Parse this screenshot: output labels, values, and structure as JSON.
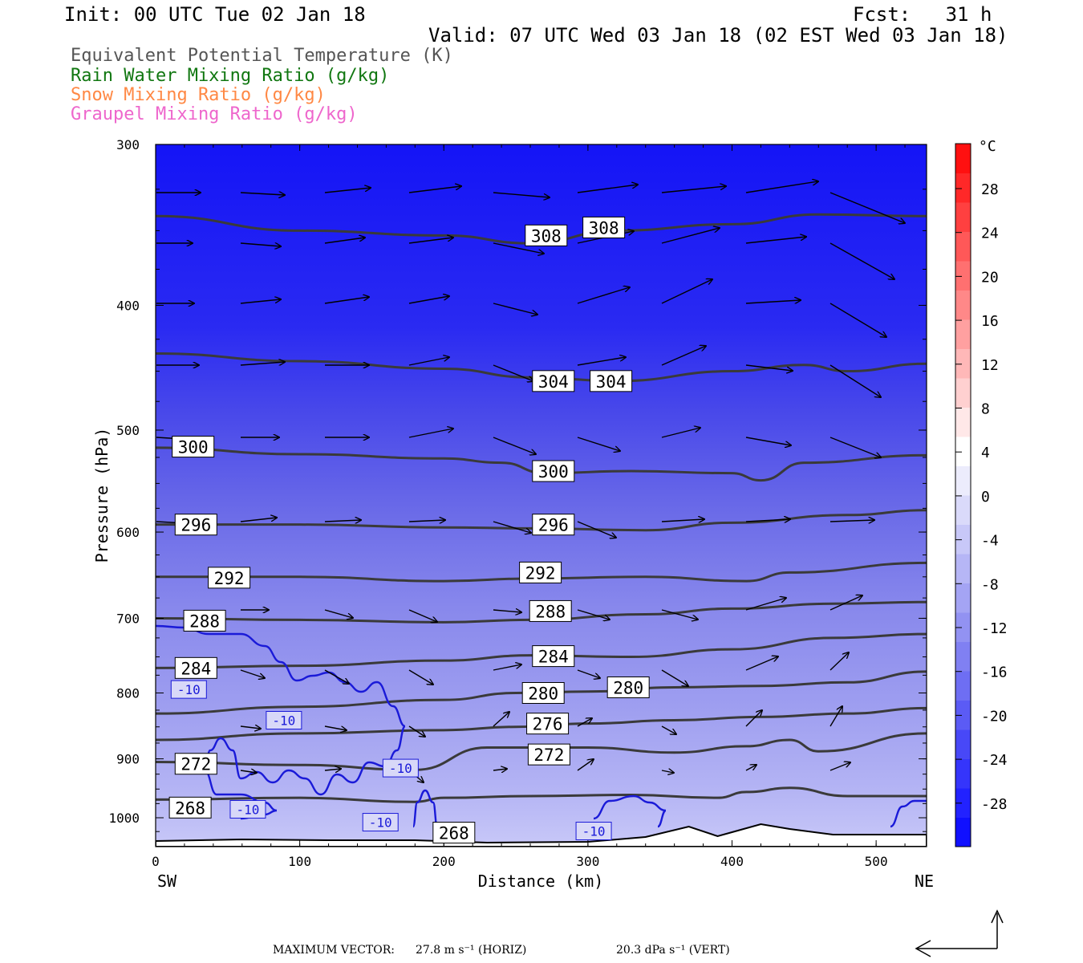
{
  "header": {
    "init": "Init: 00 UTC Tue 02 Jan 18",
    "fcst": "Fcst:   31 h",
    "valid": "Valid: 07 UTC Wed 03 Jan 18 (02 EST Wed 03 Jan 18)"
  },
  "legend": [
    {
      "label": "Equivalent Potential Temperature (K)",
      "color": "#555555"
    },
    {
      "label": "Rain Water Mixing Ratio (g/kg)",
      "color": "#117711"
    },
    {
      "label": "Snow Mixing Ratio (g/kg)",
      "color": "#ff8844"
    },
    {
      "label": "Graupel Mixing Ratio (g/kg)",
      "color": "#ee66cc"
    }
  ],
  "axes": {
    "xlabel": "Distance (km)",
    "ylabel": "Pressure (hPa)",
    "left_end": "SW",
    "right_end": "NE"
  },
  "footer": {
    "max_vector_label": "MAXIMUM VECTOR:",
    "horiz": "27.8 m s⁻¹ (HORIZ)",
    "vert": "20.3 dPa s⁻¹ (VERT)"
  },
  "colorbar": {
    "unit": "°C",
    "labels": [
      "28",
      "24",
      "20",
      "16",
      "12",
      "8",
      "4",
      "0",
      "-4",
      "-8",
      "-12",
      "-16",
      "-20",
      "-24",
      "-28"
    ],
    "colors": [
      "#1010ff",
      "#2222ff",
      "#3535fb",
      "#4848f7",
      "#5b5bf5",
      "#6e6ef3",
      "#8080f2",
      "#9292f2",
      "#a4a4f4",
      "#b6b6f6",
      "#c8c8f8",
      "#dadafa",
      "#ececfc",
      "#ffffff",
      "#ffe8e8",
      "#ffd0d0",
      "#ffb8b8",
      "#ffa0a0",
      "#ff8888",
      "#ff7070",
      "#ff5858",
      "#ff4040",
      "#ff2828",
      "#ff1010"
    ]
  },
  "chart_data": {
    "type": "cross-section",
    "x_range": [
      0,
      535
    ],
    "y_range_hpa": [
      1030,
      300
    ],
    "y_scale": "log",
    "x_ticks": [
      0,
      100,
      200,
      300,
      400,
      500
    ],
    "y_ticks": [
      300,
      400,
      500,
      600,
      700,
      800,
      900,
      1000
    ],
    "theta_e_contours": [
      {
        "value": 308,
        "label": "308",
        "points": [
          [
            0,
            341
          ],
          [
            100,
            350
          ],
          [
            200,
            353
          ],
          [
            260,
            358
          ],
          [
            320,
            350
          ],
          [
            400,
            346
          ],
          [
            460,
            340
          ],
          [
            535,
            341
          ]
        ],
        "labels_at": [
          [
            271,
            353
          ],
          [
            311,
            348
          ]
        ]
      },
      {
        "value": 304,
        "label": "304",
        "points": [
          [
            0,
            436
          ],
          [
            100,
            442
          ],
          [
            200,
            448
          ],
          [
            260,
            455
          ],
          [
            320,
            458
          ],
          [
            400,
            450
          ],
          [
            450,
            445
          ],
          [
            480,
            450
          ],
          [
            535,
            444
          ]
        ],
        "labels_at": [
          [
            276,
            458
          ],
          [
            316,
            458
          ]
        ]
      },
      {
        "value": 300,
        "label": "300",
        "points": [
          [
            0,
            516
          ],
          [
            100,
            522
          ],
          [
            200,
            526
          ],
          [
            240,
            530
          ],
          [
            270,
            540
          ],
          [
            330,
            538
          ],
          [
            400,
            540
          ],
          [
            420,
            547
          ],
          [
            450,
            530
          ],
          [
            535,
            523
          ]
        ],
        "labels_at": [
          [
            26,
            515
          ],
          [
            276,
            538
          ]
        ]
      },
      {
        "value": 296,
        "label": "296",
        "points": [
          [
            0,
            592
          ],
          [
            100,
            592
          ],
          [
            200,
            595
          ],
          [
            260,
            596
          ],
          [
            340,
            598
          ],
          [
            400,
            590
          ],
          [
            480,
            582
          ],
          [
            535,
            577
          ]
        ],
        "labels_at": [
          [
            28,
            592
          ],
          [
            276,
            592
          ]
        ]
      },
      {
        "value": 292,
        "label": "292",
        "points": [
          [
            0,
            650
          ],
          [
            100,
            650
          ],
          [
            200,
            655
          ],
          [
            260,
            652
          ],
          [
            340,
            650
          ],
          [
            410,
            655
          ],
          [
            440,
            645
          ],
          [
            535,
            634
          ]
        ],
        "labels_at": [
          [
            51,
            651
          ],
          [
            267,
            645
          ]
        ]
      },
      {
        "value": 288,
        "label": "288",
        "points": [
          [
            0,
            700
          ],
          [
            100,
            702
          ],
          [
            200,
            705
          ],
          [
            260,
            702
          ],
          [
            340,
            695
          ],
          [
            400,
            688
          ],
          [
            470,
            682
          ],
          [
            535,
            680
          ]
        ],
        "labels_at": [
          [
            34,
            703
          ],
          [
            274,
            691
          ]
        ]
      },
      {
        "value": 284,
        "label": "284",
        "points": [
          [
            0,
            765
          ],
          [
            100,
            762
          ],
          [
            200,
            755
          ],
          [
            260,
            748
          ],
          [
            330,
            750
          ],
          [
            400,
            740
          ],
          [
            470,
            725
          ],
          [
            535,
            720
          ]
        ],
        "labels_at": [
          [
            28,
            765
          ],
          [
            276,
            749
          ]
        ]
      },
      {
        "value": 280,
        "label": "280",
        "points": [
          [
            0,
            830
          ],
          [
            100,
            820
          ],
          [
            200,
            810
          ],
          [
            250,
            800
          ],
          [
            300,
            798
          ],
          [
            360,
            792
          ],
          [
            420,
            790
          ],
          [
            480,
            785
          ],
          [
            535,
            770
          ]
        ],
        "labels_at": [
          [
            269,
            800
          ],
          [
            328,
            792
          ]
        ]
      },
      {
        "value": 276,
        "label": "276",
        "points": [
          [
            0,
            870
          ],
          [
            100,
            860
          ],
          [
            200,
            855
          ],
          [
            250,
            850
          ],
          [
            300,
            845
          ],
          [
            360,
            840
          ],
          [
            420,
            835
          ],
          [
            480,
            830
          ],
          [
            535,
            822
          ]
        ],
        "labels_at": [
          [
            272,
            845
          ]
        ]
      },
      {
        "value": 272,
        "label": "272",
        "points": [
          [
            0,
            905
          ],
          [
            100,
            910
          ],
          [
            180,
            918
          ],
          [
            230,
            882
          ],
          [
            300,
            882
          ],
          [
            360,
            890
          ],
          [
            410,
            880
          ],
          [
            440,
            870
          ],
          [
            460,
            888
          ],
          [
            535,
            860
          ]
        ],
        "labels_at": [
          [
            28,
            908
          ],
          [
            273,
            893
          ]
        ]
      },
      {
        "value": 268,
        "label": "268",
        "points": [
          [
            0,
            968
          ],
          [
            100,
            965
          ],
          [
            180,
            972
          ],
          [
            200,
            965
          ],
          [
            260,
            962
          ],
          [
            330,
            960
          ],
          [
            390,
            965
          ],
          [
            410,
            955
          ],
          [
            440,
            948
          ],
          [
            480,
            962
          ],
          [
            535,
            962
          ]
        ],
        "labels_at": [
          [
            24,
            982
          ],
          [
            207,
            1027
          ]
        ]
      }
    ],
    "temperature_contour_label": "-10",
    "temperature_label_positions": [
      [
        23,
        795
      ],
      [
        89,
        840
      ],
      [
        170,
        915
      ],
      [
        64,
        985
      ],
      [
        156,
        1008
      ],
      [
        304,
        1024
      ]
    ],
    "wind_vectors_note": "Horizontal/vertical circulation vectors along section"
  }
}
